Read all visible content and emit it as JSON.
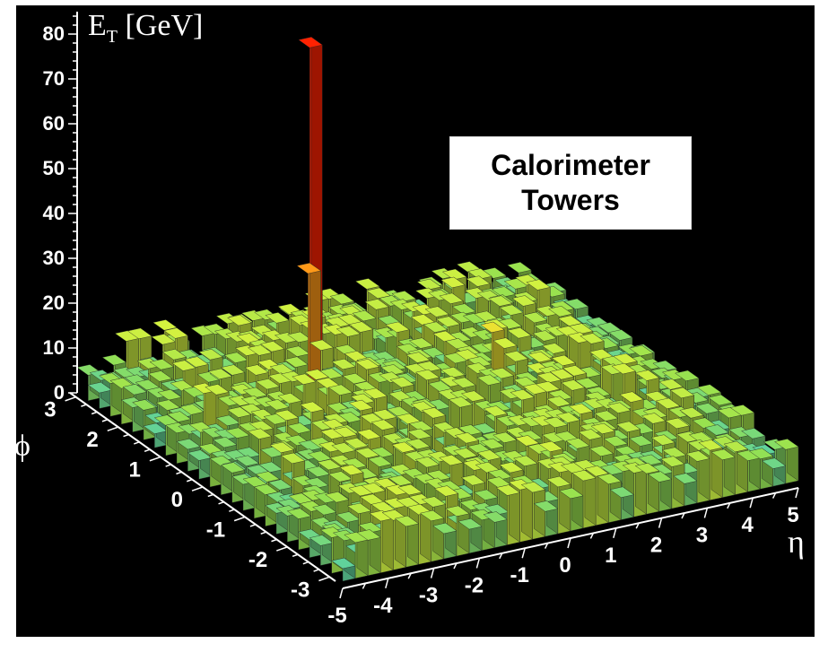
{
  "chart_data": {
    "type": "lego-3d-bar",
    "title": "",
    "annotation": [
      "Calorimeter",
      "Towers"
    ],
    "z_axis": {
      "label_main": "E",
      "label_sub": "T",
      "label_unit": "[GeV]",
      "range": [
        0,
        85
      ],
      "ticks": [
        0,
        10,
        20,
        30,
        40,
        50,
        60,
        70,
        80
      ]
    },
    "eta_axis": {
      "label": "η",
      "range": [
        -5,
        5
      ],
      "ticks": [
        -5,
        -4,
        -3,
        -2,
        -1,
        0,
        1,
        2,
        3,
        4,
        5
      ]
    },
    "phi_axis": {
      "label": "ϕ",
      "range": [
        -3.14,
        3.14
      ],
      "ticks": [
        -3,
        -2,
        -1,
        0,
        1,
        2,
        3
      ]
    },
    "background_level_gev": [
      4,
      12
    ],
    "peaks": [
      {
        "eta": -1.0,
        "phi": 1.9,
        "et": 77
      },
      {
        "eta": -1.2,
        "phi": 1.7,
        "et": 29
      },
      {
        "eta": 1.7,
        "phi": 0.6,
        "et": 16
      }
    ],
    "colors": {
      "background": "#000000",
      "low": "#33c8c8",
      "mid": "#c8f03c",
      "high": "#ff2a00",
      "axis": "#ffffff"
    }
  }
}
